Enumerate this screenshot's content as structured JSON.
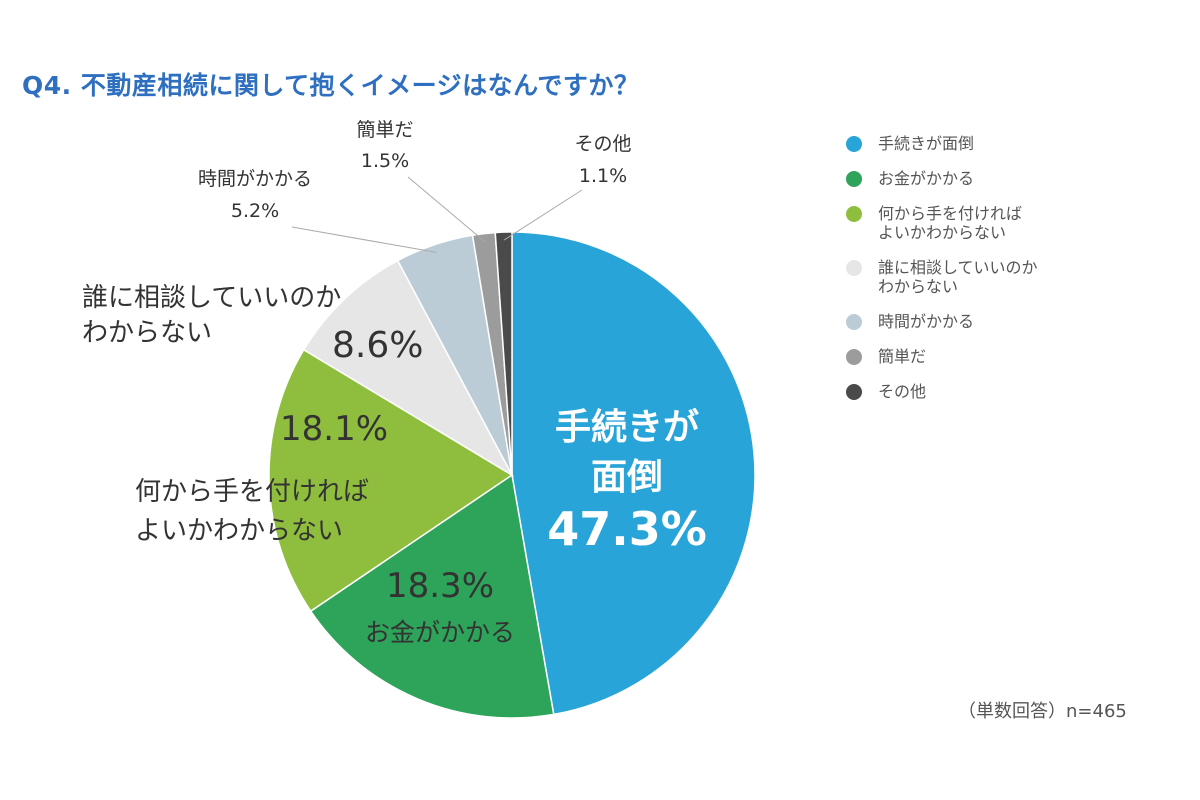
{
  "chart_data": {
    "type": "pie",
    "title": "Q4. 不動産相続に関して抱くイメージはなんですか？",
    "unit": "%",
    "start_angle_deg": 0,
    "direction": "clockwise",
    "categories": [
      "手続きが面倒",
      "お金がかかる",
      "何から手を付ければよいかわからない",
      "誰に相談していいのかわからない",
      "時間がかかる",
      "簡単だ",
      "その他"
    ],
    "values": [
      47.3,
      18.3,
      18.1,
      8.6,
      5.2,
      1.5,
      1.1
    ],
    "value_labels": [
      "47.3%",
      "18.3%",
      "18.1%",
      "8.6%",
      "5.2%",
      "1.5%",
      "1.1%"
    ],
    "colors": [
      "#29a4d8",
      "#2ea35a",
      "#8fbe3e",
      "#e6e6e6",
      "#bcccd6",
      "#9c9c9c",
      "#4a4a4a"
    ],
    "legend": {
      "placement": "right",
      "entries": [
        "手続きが面倒",
        "お金がかかる",
        "何から手を付ければ\nよいかわからない",
        "誰に相談していいのか\nわからない",
        "時間がかかる",
        "簡単だ",
        "その他"
      ]
    },
    "slice_labels": [
      {
        "lines": [
          "手続きが",
          "面倒",
          "47.3%"
        ]
      },
      {
        "lines": [
          "18.3%",
          "お金がかかる"
        ]
      },
      {
        "lines": [
          "18.1%",
          "何から手を付ければ",
          "よいかわからない"
        ]
      },
      {
        "lines": [
          "誰に相談していいのか",
          "わからない",
          "8.6%"
        ]
      },
      {
        "lines": [
          "時間がかかる",
          "5.2%"
        ]
      },
      {
        "lines": [
          "簡単だ",
          "1.5%"
        ]
      },
      {
        "lines": [
          "その他",
          "1.1%"
        ]
      }
    ]
  },
  "note": "（単数回答）n=465"
}
